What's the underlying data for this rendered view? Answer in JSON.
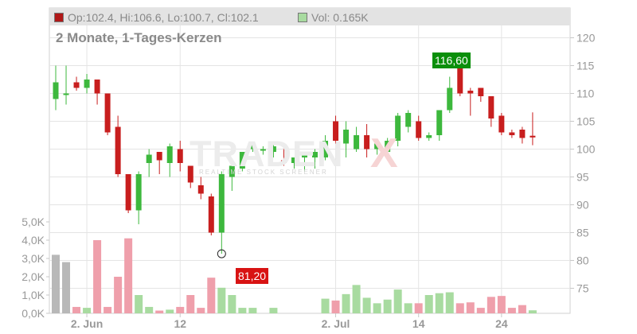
{
  "legend": {
    "ohlc_text": "Op:102.4, Hi:106.6, Lo:100.7, Cl:102.1",
    "ohlc_color": "#b01818",
    "volume_text": "Vol: 0.165K",
    "volume_color": "#a8dba0"
  },
  "subtitle": "2 Monate, 1-Tages-Kerzen",
  "watermark": {
    "main": "TRADEN",
    "x": "X",
    "sub": "REALTIME STOCK SCREENER"
  },
  "annotations": {
    "high": "116,60",
    "low": "81,20"
  },
  "colors": {
    "up": "#3db83d",
    "down": "#c81e1e",
    "vol_up": "#a8dba0",
    "vol_down": "#ef9fab",
    "vol_neutral": "#b8b8b8",
    "high_label": "#0b8f0b",
    "low_label": "#d81313"
  },
  "chart_data": {
    "type": "candlestick",
    "price_axis": {
      "ticks": [
        75,
        80,
        85,
        90,
        95,
        100,
        105,
        110,
        115,
        120
      ],
      "range": [
        72.5,
        122.5
      ],
      "side": "right"
    },
    "volume_axis": {
      "ticks": [
        "0,0K",
        "1,0K",
        "2,0K",
        "3,0K",
        "4,0K",
        "5,0K"
      ],
      "range": [
        0,
        5000
      ],
      "side": "left"
    },
    "x_ticks": [
      {
        "label": "2. Jun",
        "index": 3
      },
      {
        "label": "12",
        "index": 12
      },
      {
        "label": "2. Jul",
        "index": 27
      },
      {
        "label": "14",
        "index": 35
      },
      {
        "label": "24",
        "index": 43
      }
    ],
    "candles": [
      {
        "o": 109,
        "h": 115,
        "l": 107,
        "c": 112,
        "vol": 3200,
        "vc": "neutral"
      },
      {
        "o": 110,
        "h": 115,
        "l": 108,
        "c": 110,
        "vol": 2800,
        "vc": "neutral"
      },
      {
        "o": 112,
        "h": 113,
        "l": 110.5,
        "c": 111,
        "vol": 350,
        "vc": "down"
      },
      {
        "o": 111,
        "h": 113.5,
        "l": 110,
        "c": 112.5,
        "vol": 300,
        "vc": "up"
      },
      {
        "o": 112.5,
        "h": 112.5,
        "l": 108,
        "c": 110,
        "vol": 4000,
        "vc": "down"
      },
      {
        "o": 110,
        "h": 110,
        "l": 102.5,
        "c": 103,
        "vol": 350,
        "vc": "down"
      },
      {
        "o": 104,
        "h": 106,
        "l": 95,
        "c": 95.5,
        "vol": 2000,
        "vc": "down"
      },
      {
        "o": 95.5,
        "h": 95.5,
        "l": 88.5,
        "c": 89,
        "vol": 4100,
        "vc": "down"
      },
      {
        "o": 89,
        "h": 96,
        "l": 86.5,
        "c": 95.5,
        "vol": 1000,
        "vc": "up"
      },
      {
        "o": 97.5,
        "h": 100,
        "l": 95,
        "c": 99,
        "vol": 350,
        "vc": "up"
      },
      {
        "o": 99.5,
        "h": 99.5,
        "l": 95.5,
        "c": 98,
        "vol": 150,
        "vc": "down"
      },
      {
        "o": 97.5,
        "h": 101,
        "l": 95,
        "c": 100.5,
        "vol": 200,
        "vc": "up"
      },
      {
        "o": 100,
        "h": 101.5,
        "l": 96,
        "c": 97.5,
        "vol": 350,
        "vc": "down"
      },
      {
        "o": 97,
        "h": 97,
        "l": 93,
        "c": 94,
        "vol": 1000,
        "vc": "down"
      },
      {
        "o": 93.5,
        "h": 95,
        "l": 91,
        "c": 92,
        "vol": 300,
        "vc": "down"
      },
      {
        "o": 91.5,
        "h": 92,
        "l": 84.5,
        "c": 85,
        "vol": 1950,
        "vc": "down"
      },
      {
        "o": 85,
        "h": 96,
        "l": 81.2,
        "c": 95.5,
        "vol": 1400,
        "vc": "up"
      },
      {
        "o": 95,
        "h": 97,
        "l": 92.5,
        "c": 97,
        "vol": 1000,
        "vc": "up"
      },
      {
        "o": 96.5,
        "h": 99.5,
        "l": 96,
        "c": 99.5,
        "vol": 300,
        "vc": "up"
      },
      {
        "o": 100,
        "h": 101,
        "l": 99.5,
        "c": 101,
        "vol": 300,
        "vc": "up"
      },
      {
        "o": 100,
        "h": 100.5,
        "l": 99,
        "c": 100,
        "vol": 0,
        "vc": "neutral"
      },
      {
        "o": 99.5,
        "h": 101,
        "l": 98.5,
        "c": 100.5,
        "vol": 300,
        "vc": "up"
      },
      {
        "o": 98,
        "h": 101,
        "l": 97,
        "c": 97.5,
        "vol": 0,
        "vc": "neutral"
      },
      {
        "o": 97.5,
        "h": 98.5,
        "l": 96.5,
        "c": 98.5,
        "vol": 0,
        "vc": "neutral"
      },
      {
        "o": 98.5,
        "h": 99.5,
        "l": 96,
        "c": 99,
        "vol": 0,
        "vc": "neutral"
      },
      {
        "o": 98.5,
        "h": 100,
        "l": 96.5,
        "c": 99.5,
        "vol": 0,
        "vc": "neutral"
      },
      {
        "o": 98.5,
        "h": 102.5,
        "l": 98,
        "c": 101.5,
        "vol": 800,
        "vc": "up"
      },
      {
        "o": 105,
        "h": 106,
        "l": 101,
        "c": 101.5,
        "vol": 700,
        "vc": "down"
      },
      {
        "o": 101,
        "h": 105,
        "l": 98.5,
        "c": 103.5,
        "vol": 1050,
        "vc": "up"
      },
      {
        "o": 100,
        "h": 104,
        "l": 99.5,
        "c": 102.5,
        "vol": 1550,
        "vc": "up"
      },
      {
        "o": 102.5,
        "h": 104.5,
        "l": 98.5,
        "c": 100,
        "vol": 850,
        "vc": "up"
      },
      {
        "o": 100,
        "h": 101,
        "l": 99,
        "c": 101,
        "vol": 550,
        "vc": "up"
      },
      {
        "o": 99.5,
        "h": 102,
        "l": 98.5,
        "c": 101.5,
        "vol": 750,
        "vc": "up"
      },
      {
        "o": 101.5,
        "h": 106.5,
        "l": 100.5,
        "c": 106,
        "vol": 1300,
        "vc": "up"
      },
      {
        "o": 104,
        "h": 107,
        "l": 103,
        "c": 106.5,
        "vol": 550,
        "vc": "up"
      },
      {
        "o": 105,
        "h": 106,
        "l": 101.5,
        "c": 102,
        "vol": 550,
        "vc": "down"
      },
      {
        "o": 102,
        "h": 103,
        "l": 101.5,
        "c": 102.5,
        "vol": 1000,
        "vc": "up"
      },
      {
        "o": 102.5,
        "h": 107,
        "l": 101.5,
        "c": 107,
        "vol": 1100,
        "vc": "up"
      },
      {
        "o": 107,
        "h": 113,
        "l": 106.5,
        "c": 111,
        "vol": 1150,
        "vc": "up"
      },
      {
        "o": 116,
        "h": 116.6,
        "l": 109.5,
        "c": 110,
        "vol": 550,
        "vc": "down"
      },
      {
        "o": 110.5,
        "h": 111,
        "l": 106,
        "c": 110,
        "vol": 600,
        "vc": "down"
      },
      {
        "o": 111,
        "h": 111,
        "l": 108.5,
        "c": 109.5,
        "vol": 300,
        "vc": "down"
      },
      {
        "o": 109.5,
        "h": 109.5,
        "l": 104,
        "c": 105.5,
        "vol": 900,
        "vc": "down"
      },
      {
        "o": 106,
        "h": 106.5,
        "l": 102.5,
        "c": 103,
        "vol": 950,
        "vc": "down"
      },
      {
        "o": 103,
        "h": 103.5,
        "l": 102,
        "c": 102.5,
        "vol": 300,
        "vc": "down"
      },
      {
        "o": 103.5,
        "h": 104,
        "l": 101,
        "c": 102,
        "vol": 450,
        "vc": "down"
      },
      {
        "o": 102.4,
        "h": 106.6,
        "l": 100.7,
        "c": 102.1,
        "vol": 165,
        "vc": "up"
      }
    ],
    "high_marker": {
      "index": 39,
      "value": 116.6
    },
    "low_marker": {
      "index": 16,
      "value": 81.2
    }
  }
}
